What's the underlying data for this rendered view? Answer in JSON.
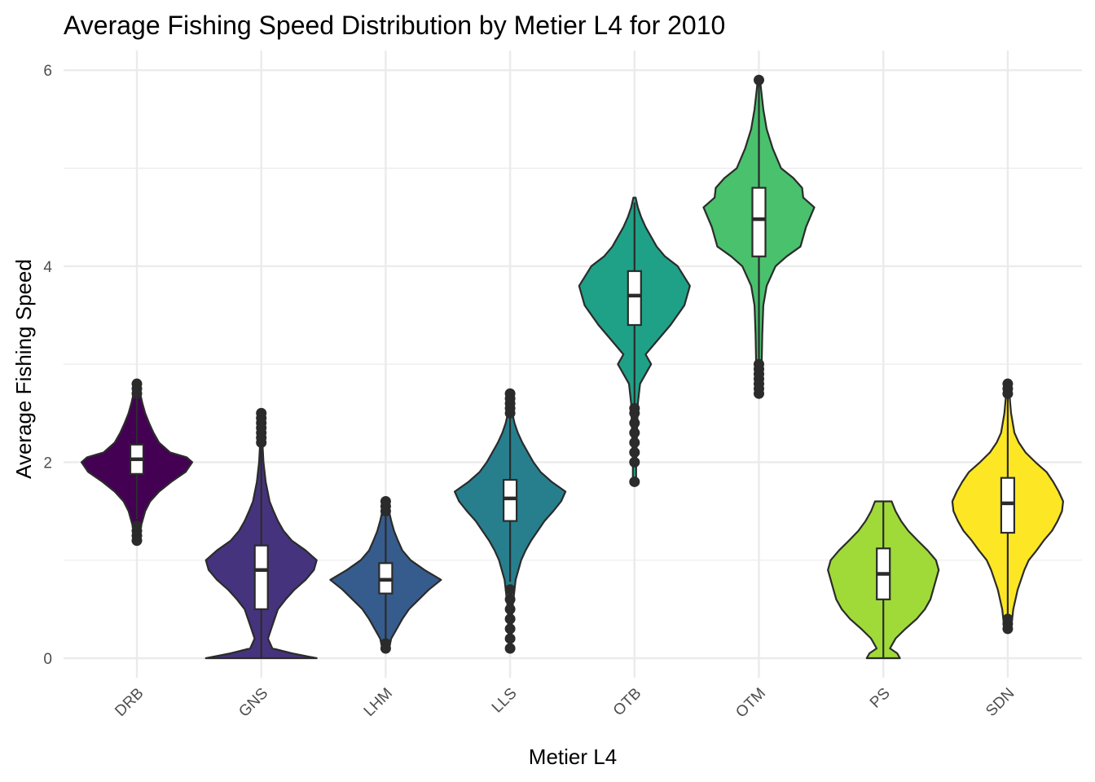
{
  "chart_data": {
    "type": "violin",
    "title": "Average Fishing Speed Distribution by Metier L4 for 2010",
    "xlabel": "Metier L4",
    "ylabel": "Average Fishing Speed",
    "ylim": [
      -0.2,
      6.2
    ],
    "yticks": [
      0,
      2,
      4,
      6
    ],
    "grid": true,
    "legend": "none",
    "categories": [
      "DRB",
      "GNS",
      "LHM",
      "LLS",
      "OTB",
      "OTM",
      "PS",
      "SDN"
    ],
    "groups": [
      {
        "name": "DRB",
        "color": "#440154",
        "box": {
          "q1": 1.88,
          "median": 2.03,
          "q3": 2.18,
          "whisker_low": 1.42,
          "whisker_high": 2.65
        },
        "outliers": [
          1.2,
          1.25,
          1.3,
          1.35,
          2.7,
          2.75,
          2.8
        ],
        "density": [
          [
            1.2,
            0.02
          ],
          [
            1.3,
            0.05
          ],
          [
            1.4,
            0.1
          ],
          [
            1.5,
            0.15
          ],
          [
            1.6,
            0.24
          ],
          [
            1.7,
            0.4
          ],
          [
            1.8,
            0.62
          ],
          [
            1.9,
            0.88
          ],
          [
            2.0,
            1.0
          ],
          [
            2.05,
            0.9
          ],
          [
            2.1,
            0.6
          ],
          [
            2.2,
            0.4
          ],
          [
            2.3,
            0.3
          ],
          [
            2.4,
            0.22
          ],
          [
            2.5,
            0.15
          ],
          [
            2.6,
            0.1
          ],
          [
            2.7,
            0.06
          ],
          [
            2.8,
            0.02
          ]
        ]
      },
      {
        "name": "GNS",
        "color": "#46337e",
        "box": {
          "q1": 0.5,
          "median": 0.9,
          "q3": 1.15,
          "whisker_low": 0.0,
          "whisker_high": 2.15
        },
        "outliers": [
          2.2,
          2.25,
          2.3,
          2.35,
          2.4,
          2.45,
          2.5
        ],
        "density": [
          [
            0.0,
            1.0
          ],
          [
            0.05,
            0.55
          ],
          [
            0.1,
            0.2
          ],
          [
            0.2,
            0.12
          ],
          [
            0.3,
            0.18
          ],
          [
            0.4,
            0.24
          ],
          [
            0.5,
            0.3
          ],
          [
            0.6,
            0.44
          ],
          [
            0.7,
            0.6
          ],
          [
            0.8,
            0.8
          ],
          [
            0.9,
            0.95
          ],
          [
            1.0,
            1.0
          ],
          [
            1.1,
            0.8
          ],
          [
            1.2,
            0.55
          ],
          [
            1.3,
            0.4
          ],
          [
            1.4,
            0.3
          ],
          [
            1.5,
            0.22
          ],
          [
            1.6,
            0.15
          ],
          [
            1.8,
            0.08
          ],
          [
            2.0,
            0.04
          ],
          [
            2.2,
            0.02
          ],
          [
            2.5,
            0.01
          ]
        ]
      },
      {
        "name": "LHM",
        "color": "#365c8d",
        "box": {
          "q1": 0.66,
          "median": 0.8,
          "q3": 0.97,
          "whisker_low": 0.12,
          "whisker_high": 1.45
        },
        "outliers": [
          0.1,
          0.15,
          1.5,
          1.55,
          1.6
        ],
        "density": [
          [
            0.1,
            0.06
          ],
          [
            0.2,
            0.1
          ],
          [
            0.3,
            0.2
          ],
          [
            0.4,
            0.3
          ],
          [
            0.5,
            0.42
          ],
          [
            0.6,
            0.6
          ],
          [
            0.7,
            0.78
          ],
          [
            0.8,
            1.0
          ],
          [
            0.9,
            0.7
          ],
          [
            1.0,
            0.45
          ],
          [
            1.1,
            0.3
          ],
          [
            1.2,
            0.22
          ],
          [
            1.3,
            0.15
          ],
          [
            1.4,
            0.1
          ],
          [
            1.5,
            0.06
          ],
          [
            1.6,
            0.03
          ]
        ]
      },
      {
        "name": "LLS",
        "color": "#277f8e",
        "box": {
          "q1": 1.4,
          "median": 1.63,
          "q3": 1.82,
          "whisker_low": 0.78,
          "whisker_high": 2.45
        },
        "outliers": [
          0.1,
          0.2,
          0.3,
          0.4,
          0.5,
          0.6,
          0.7,
          2.5,
          2.55,
          2.6,
          2.65,
          2.7
        ],
        "density": [
          [
            0.1,
            0.02
          ],
          [
            0.5,
            0.04
          ],
          [
            0.8,
            0.1
          ],
          [
            1.0,
            0.2
          ],
          [
            1.1,
            0.28
          ],
          [
            1.2,
            0.38
          ],
          [
            1.3,
            0.5
          ],
          [
            1.4,
            0.62
          ],
          [
            1.5,
            0.78
          ],
          [
            1.6,
            0.92
          ],
          [
            1.7,
            1.0
          ],
          [
            1.8,
            0.75
          ],
          [
            1.9,
            0.55
          ],
          [
            2.0,
            0.42
          ],
          [
            2.1,
            0.32
          ],
          [
            2.2,
            0.22
          ],
          [
            2.3,
            0.14
          ],
          [
            2.4,
            0.08
          ],
          [
            2.5,
            0.04
          ],
          [
            2.7,
            0.02
          ]
        ]
      },
      {
        "name": "OTB",
        "color": "#1fa187",
        "box": {
          "q1": 3.4,
          "median": 3.7,
          "q3": 3.95,
          "whisker_low": 2.6,
          "whisker_high": 4.65
        },
        "outliers": [
          1.8,
          2.0,
          2.1,
          2.2,
          2.3,
          2.4,
          2.5,
          2.55
        ],
        "density": [
          [
            1.8,
            0.03
          ],
          [
            2.0,
            0.03
          ],
          [
            2.2,
            0.04
          ],
          [
            2.4,
            0.05
          ],
          [
            2.6,
            0.06
          ],
          [
            2.8,
            0.1
          ],
          [
            3.0,
            0.3
          ],
          [
            3.1,
            0.2
          ],
          [
            3.2,
            0.35
          ],
          [
            3.4,
            0.65
          ],
          [
            3.6,
            0.9
          ],
          [
            3.8,
            1.0
          ],
          [
            4.0,
            0.78
          ],
          [
            4.1,
            0.55
          ],
          [
            4.2,
            0.4
          ],
          [
            4.3,
            0.3
          ],
          [
            4.4,
            0.2
          ],
          [
            4.5,
            0.12
          ],
          [
            4.6,
            0.06
          ],
          [
            4.7,
            0.02
          ]
        ]
      },
      {
        "name": "OTM",
        "color": "#4ac16d",
        "box": {
          "q1": 4.1,
          "median": 4.48,
          "q3": 4.8,
          "whisker_low": 3.05,
          "whisker_high": 5.85
        },
        "outliers": [
          2.7,
          2.75,
          2.8,
          2.85,
          2.9,
          2.95,
          3.0,
          5.9
        ],
        "density": [
          [
            2.7,
            0.04
          ],
          [
            3.0,
            0.05
          ],
          [
            3.3,
            0.06
          ],
          [
            3.6,
            0.08
          ],
          [
            3.8,
            0.14
          ],
          [
            4.0,
            0.3
          ],
          [
            4.1,
            0.5
          ],
          [
            4.2,
            0.75
          ],
          [
            4.4,
            0.85
          ],
          [
            4.6,
            1.0
          ],
          [
            4.7,
            0.8
          ],
          [
            4.8,
            0.78
          ],
          [
            4.9,
            0.62
          ],
          [
            5.0,
            0.4
          ],
          [
            5.2,
            0.25
          ],
          [
            5.4,
            0.14
          ],
          [
            5.6,
            0.08
          ],
          [
            5.8,
            0.04
          ],
          [
            5.9,
            0.02
          ]
        ]
      },
      {
        "name": "PS",
        "color": "#a0da39",
        "box": {
          "q1": 0.6,
          "median": 0.86,
          "q3": 1.12,
          "whisker_low": 0.0,
          "whisker_high": 1.6
        },
        "outliers": [],
        "density": [
          [
            0.0,
            0.3
          ],
          [
            0.05,
            0.25
          ],
          [
            0.1,
            0.12
          ],
          [
            0.2,
            0.22
          ],
          [
            0.3,
            0.4
          ],
          [
            0.4,
            0.6
          ],
          [
            0.5,
            0.75
          ],
          [
            0.6,
            0.85
          ],
          [
            0.7,
            0.9
          ],
          [
            0.8,
            0.95
          ],
          [
            0.9,
            1.0
          ],
          [
            1.0,
            0.95
          ],
          [
            1.1,
            0.8
          ],
          [
            1.2,
            0.62
          ],
          [
            1.3,
            0.45
          ],
          [
            1.4,
            0.32
          ],
          [
            1.5,
            0.22
          ],
          [
            1.6,
            0.15
          ]
        ]
      },
      {
        "name": "SDN",
        "color": "#fde725",
        "box": {
          "q1": 1.28,
          "median": 1.58,
          "q3": 1.84,
          "whisker_low": 0.45,
          "whisker_high": 2.65
        },
        "outliers": [
          0.3,
          0.35,
          0.4,
          2.7,
          2.75,
          2.8
        ],
        "density": [
          [
            0.3,
            0.06
          ],
          [
            0.5,
            0.1
          ],
          [
            0.7,
            0.18
          ],
          [
            0.9,
            0.3
          ],
          [
            1.0,
            0.38
          ],
          [
            1.1,
            0.52
          ],
          [
            1.2,
            0.65
          ],
          [
            1.3,
            0.8
          ],
          [
            1.4,
            0.9
          ],
          [
            1.5,
            0.98
          ],
          [
            1.6,
            1.0
          ],
          [
            1.7,
            0.92
          ],
          [
            1.8,
            0.82
          ],
          [
            1.9,
            0.7
          ],
          [
            2.0,
            0.5
          ],
          [
            2.1,
            0.32
          ],
          [
            2.2,
            0.2
          ],
          [
            2.3,
            0.12
          ],
          [
            2.5,
            0.06
          ],
          [
            2.7,
            0.03
          ],
          [
            2.8,
            0.02
          ]
        ]
      }
    ]
  }
}
